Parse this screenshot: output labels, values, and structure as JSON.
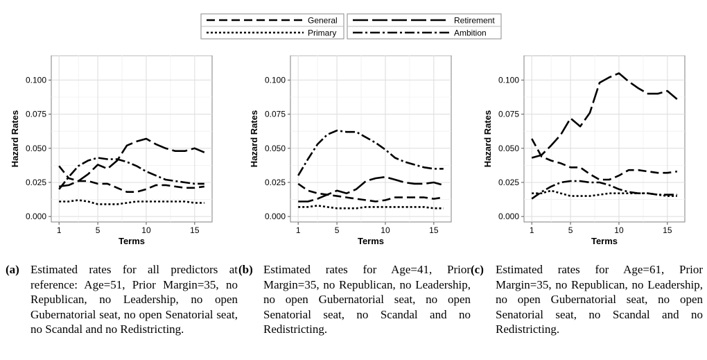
{
  "legend": [
    {
      "name": "General",
      "dash": "12,6"
    },
    {
      "name": "Retirement",
      "dash": "22,6"
    },
    {
      "name": "Primary",
      "dash": "3,3"
    },
    {
      "name": "Ambition",
      "dash": "14,4,3,4"
    }
  ],
  "chart_data": [
    {
      "type": "line",
      "xlabel": "Terms",
      "ylabel": "Hazard Rates",
      "xlim": [
        0.2,
        16.8
      ],
      "ylim": [
        -0.004,
        0.118
      ],
      "xticks": [
        1,
        5,
        10,
        15
      ],
      "yticks": [
        0.0,
        0.025,
        0.05,
        0.075,
        0.1
      ],
      "ytick_labels": [
        "0.000",
        "0.025",
        "0.050",
        "0.075",
        "0.100"
      ],
      "grid": true,
      "x": [
        1,
        2,
        3,
        4,
        5,
        6,
        7,
        8,
        9,
        10,
        11,
        12,
        13,
        14,
        15,
        16
      ],
      "series": [
        {
          "name": "General",
          "values": [
            0.037,
            0.028,
            0.026,
            0.026,
            0.024,
            0.024,
            0.021,
            0.018,
            0.018,
            0.02,
            0.023,
            0.023,
            0.022,
            0.021,
            0.021,
            0.022
          ]
        },
        {
          "name": "Retirement",
          "values": [
            0.022,
            0.023,
            0.026,
            0.031,
            0.038,
            0.035,
            0.041,
            0.052,
            0.055,
            0.057,
            0.053,
            0.05,
            0.048,
            0.048,
            0.05,
            0.047
          ]
        },
        {
          "name": "Primary",
          "values": [
            0.011,
            0.011,
            0.012,
            0.011,
            0.009,
            0.009,
            0.009,
            0.01,
            0.011,
            0.011,
            0.011,
            0.011,
            0.011,
            0.011,
            0.01,
            0.01
          ]
        },
        {
          "name": "Ambition",
          "values": [
            0.02,
            0.029,
            0.037,
            0.041,
            0.043,
            0.042,
            0.042,
            0.04,
            0.037,
            0.033,
            0.03,
            0.027,
            0.026,
            0.025,
            0.024,
            0.024
          ]
        }
      ]
    },
    {
      "type": "line",
      "xlabel": "Terms",
      "ylabel": "Hazard Rates",
      "xlim": [
        0.2,
        16.8
      ],
      "ylim": [
        -0.004,
        0.118
      ],
      "xticks": [
        1,
        5,
        10,
        15
      ],
      "yticks": [
        0.0,
        0.025,
        0.05,
        0.075,
        0.1
      ],
      "ytick_labels": [
        "0.000",
        "0.025",
        "0.050",
        "0.075",
        "0.100"
      ],
      "grid": true,
      "x": [
        1,
        2,
        3,
        4,
        5,
        6,
        7,
        8,
        9,
        10,
        11,
        12,
        13,
        14,
        15,
        16
      ],
      "series": [
        {
          "name": "General",
          "values": [
            0.024,
            0.019,
            0.017,
            0.016,
            0.015,
            0.014,
            0.013,
            0.012,
            0.011,
            0.012,
            0.014,
            0.014,
            0.014,
            0.014,
            0.013,
            0.014
          ]
        },
        {
          "name": "Retirement",
          "values": [
            0.011,
            0.011,
            0.013,
            0.016,
            0.019,
            0.017,
            0.02,
            0.026,
            0.028,
            0.029,
            0.027,
            0.025,
            0.024,
            0.024,
            0.025,
            0.023
          ]
        },
        {
          "name": "Primary",
          "values": [
            0.007,
            0.007,
            0.008,
            0.007,
            0.006,
            0.006,
            0.006,
            0.007,
            0.007,
            0.007,
            0.007,
            0.007,
            0.007,
            0.007,
            0.006,
            0.006
          ]
        },
        {
          "name": "Ambition",
          "values": [
            0.03,
            0.042,
            0.053,
            0.06,
            0.063,
            0.062,
            0.062,
            0.058,
            0.054,
            0.049,
            0.043,
            0.04,
            0.038,
            0.036,
            0.035,
            0.035
          ]
        }
      ]
    },
    {
      "type": "line",
      "xlabel": "Terms",
      "ylabel": "Hazard Rates",
      "xlim": [
        0.2,
        16.8
      ],
      "ylim": [
        -0.004,
        0.118
      ],
      "xticks": [
        1,
        5,
        10,
        15
      ],
      "yticks": [
        0.0,
        0.025,
        0.05,
        0.075,
        0.1
      ],
      "ytick_labels": [
        "0.000",
        "0.025",
        "0.050",
        "0.075",
        "0.100"
      ],
      "grid": true,
      "x": [
        1,
        2,
        3,
        4,
        5,
        6,
        7,
        8,
        9,
        10,
        11,
        12,
        13,
        14,
        15,
        16
      ],
      "series": [
        {
          "name": "General",
          "values": [
            0.057,
            0.044,
            0.041,
            0.039,
            0.036,
            0.036,
            0.031,
            0.027,
            0.027,
            0.03,
            0.034,
            0.034,
            0.033,
            0.032,
            0.032,
            0.033
          ]
        },
        {
          "name": "Retirement",
          "values": [
            0.043,
            0.045,
            0.052,
            0.06,
            0.072,
            0.066,
            0.076,
            0.098,
            0.102,
            0.105,
            0.099,
            0.094,
            0.09,
            0.09,
            0.092,
            0.086
          ]
        },
        {
          "name": "Primary",
          "values": [
            0.017,
            0.017,
            0.019,
            0.017,
            0.015,
            0.015,
            0.015,
            0.016,
            0.017,
            0.017,
            0.017,
            0.017,
            0.017,
            0.016,
            0.015,
            0.015
          ]
        },
        {
          "name": "Ambition",
          "values": [
            0.013,
            0.018,
            0.022,
            0.025,
            0.026,
            0.026,
            0.025,
            0.025,
            0.023,
            0.02,
            0.018,
            0.017,
            0.017,
            0.016,
            0.016,
            0.016
          ]
        }
      ]
    }
  ],
  "captions": [
    {
      "label": "(a)",
      "text": "Estimated rates for all predictors at reference: Age=51, Prior Margin=35, no Republican, no Leadership, no open Gubernatorial seat, no open Senatorial seat, no Scandal and no Redistricting."
    },
    {
      "label": "(b)",
      "text": "Estimated rates for Age=41, Prior Margin=35, no Republican, no Leadership, no open Gubernatorial seat, no open Senatorial seat, no Scandal and no Redistricting."
    },
    {
      "label": "(c)",
      "text": "Estimated rates for Age=61, Prior Margin=35, no Republican, no Leadership, no open Gubernatorial seat, no open Senatorial seat, no Scandal and no Redistricting."
    }
  ]
}
